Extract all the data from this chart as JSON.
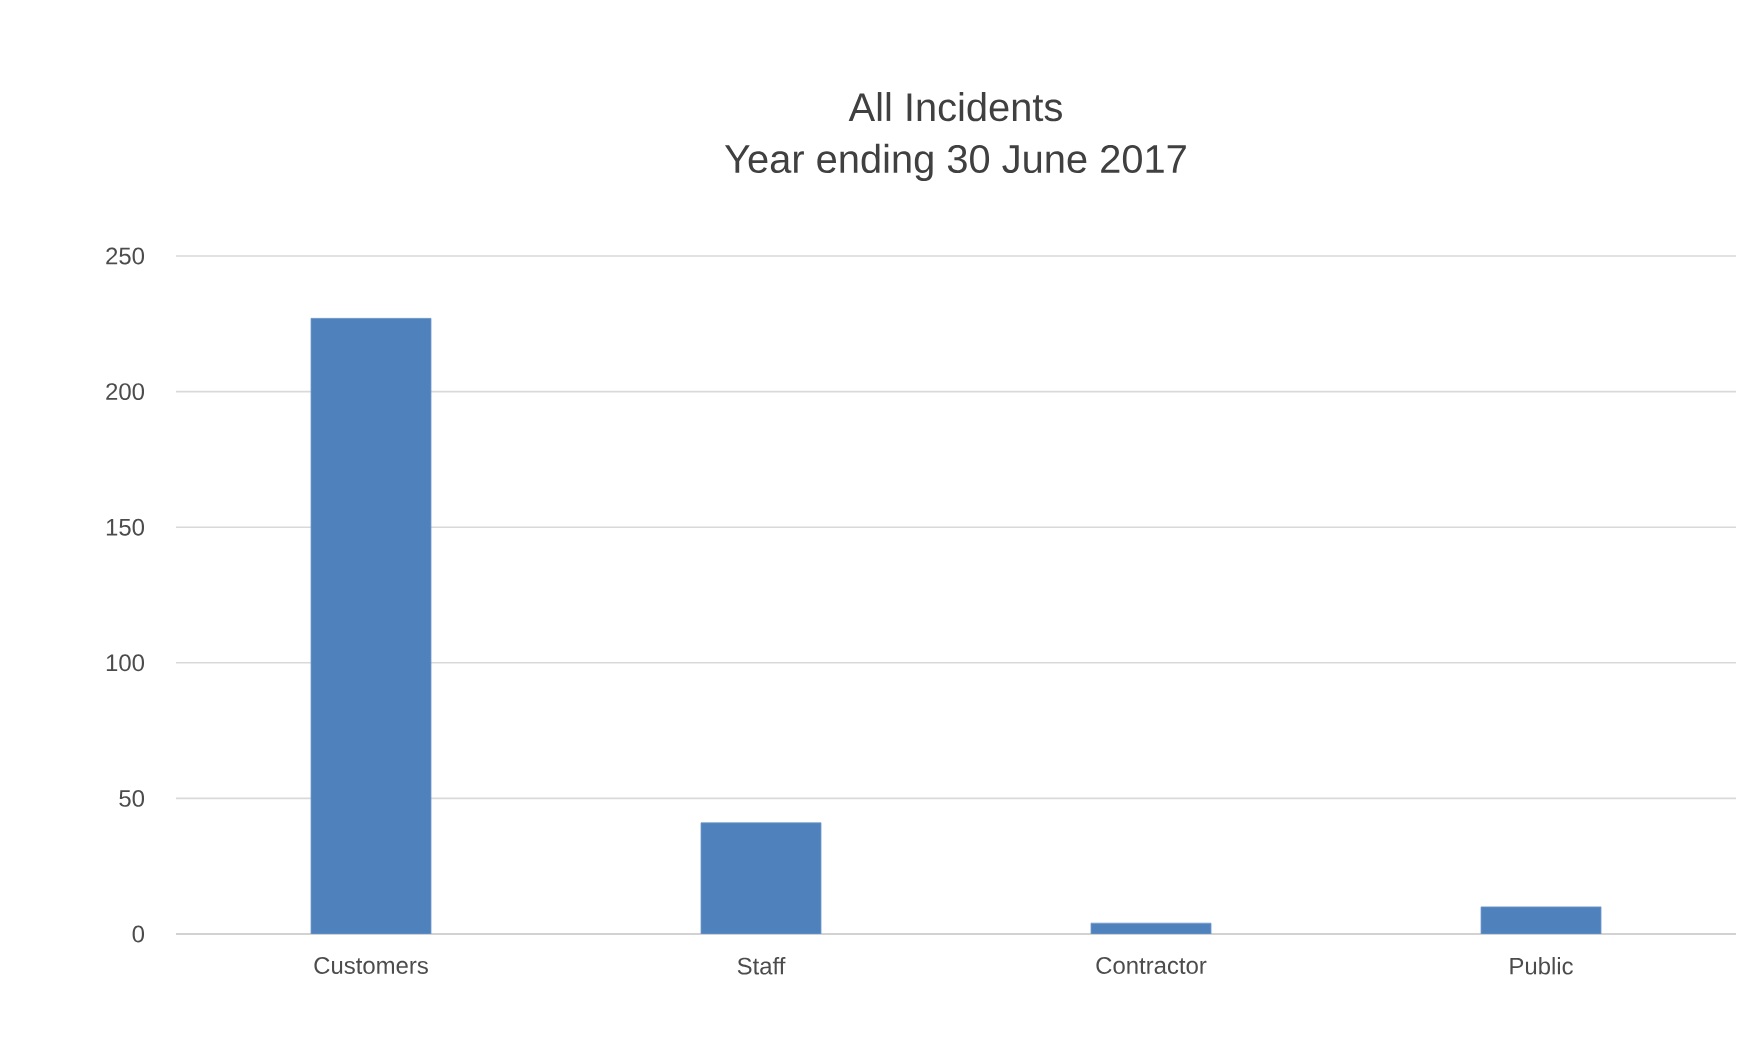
{
  "chart_data": {
    "type": "bar",
    "title": "All Incidents",
    "subtitle": "Year ending 30 June 2017",
    "categories": [
      "Customers",
      "Staff",
      "Contractor",
      "Public"
    ],
    "values": [
      227,
      41,
      4,
      10
    ],
    "color": "#4f81bd",
    "ylim": [
      0,
      250
    ],
    "yticks": [
      0,
      50,
      100,
      150,
      200,
      250
    ],
    "grid": "y"
  }
}
